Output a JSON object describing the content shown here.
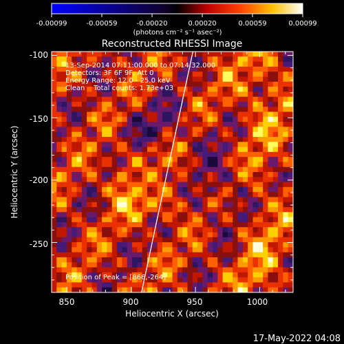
{
  "colorbar": {
    "tick_labels": [
      "-0.00099",
      "-0.00059",
      "-0.00020",
      "0.00020",
      "0.00059",
      "0.00099"
    ],
    "units_label": "(photons cm⁻² s⁻¹ asec⁻²)",
    "min": -0.00099,
    "max": 0.00099
  },
  "title": "Reconstructed RHESSI Image",
  "info": {
    "line1": "13-Sep-2014 07:11:00.000 to 07:14:32.000",
    "line2": "Detectors: 3F 6F 9F, Att 0",
    "line3": "Energy Range: 12.0 - 25.0 keV",
    "line4": "Clean    Total counts: 1.73e+03"
  },
  "peak_label": "Position of Peak = [866,-264]",
  "chart_data": {
    "type": "heatmap",
    "title": "Reconstructed RHESSI Image",
    "xlabel": "Heliocentric X (arcsec)",
    "ylabel": "Heliocentric Y (arcsec)",
    "xlim": [
      838,
      1026
    ],
    "ylim": [
      -290,
      -97
    ],
    "x_ticks": [
      850,
      900,
      950,
      1000
    ],
    "y_ticks": [
      -100,
      -150,
      -200,
      -250
    ],
    "limb_line": [
      [
        908,
        -290
      ],
      [
        948,
        -97
      ]
    ],
    "peak": [
      866,
      -264
    ],
    "colorscale": [
      "#0000ff",
      "#000000",
      "#ff0000",
      "#ffff00",
      "#ffffff"
    ],
    "grid": false
  },
  "timestamp": "17-May-2022 04:08"
}
